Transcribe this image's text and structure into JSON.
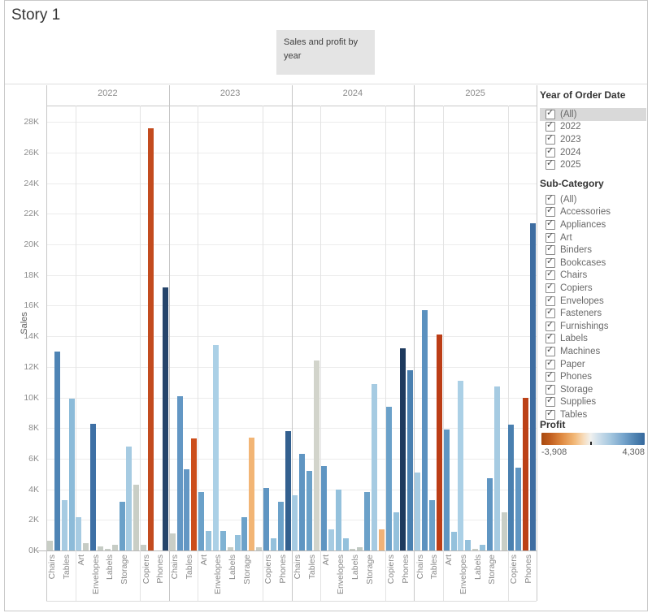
{
  "story": {
    "title": "Story 1",
    "caption": "Sales and profit by year"
  },
  "chart_data": {
    "type": "bar",
    "title": "Sales and profit by year",
    "ylabel": "Sales",
    "y_ticks": [
      "0K",
      "2K",
      "4K",
      "6K",
      "8K",
      "10K",
      "12K",
      "14K",
      "16K",
      "18K",
      "20K",
      "22K",
      "24K",
      "26K",
      "28K"
    ],
    "ylim": [
      0,
      29
    ],
    "unit": "thousands",
    "color_encoding": "Profit (orange = negative, blue = positive)",
    "group_sizes": [
      4,
      9,
      4
    ],
    "sub_slots": [
      {
        "sub": "Bookcases",
        "axis_label": false
      },
      {
        "sub": "Chairs",
        "axis_label": true
      },
      {
        "sub": "Furnishings",
        "axis_label": false
      },
      {
        "sub": "Tables",
        "axis_label": true
      },
      {
        "sub": "Appliances",
        "axis_label": false
      },
      {
        "sub": "Art",
        "axis_label": true
      },
      {
        "sub": "Binders",
        "axis_label": false
      },
      {
        "sub": "Envelopes",
        "axis_label": true
      },
      {
        "sub": "Fasteners",
        "axis_label": false
      },
      {
        "sub": "Labels",
        "axis_label": true
      },
      {
        "sub": "Paper",
        "axis_label": false
      },
      {
        "sub": "Storage",
        "axis_label": true
      },
      {
        "sub": "Supplies",
        "axis_label": false
      },
      {
        "sub": "Accessories",
        "axis_label": false
      },
      {
        "sub": "Copiers",
        "axis_label": true
      },
      {
        "sub": "Machines",
        "axis_label": false
      },
      {
        "sub": "Phones",
        "axis_label": true
      }
    ],
    "years": [
      {
        "label": "2022",
        "values": [
          0.65,
          13.0,
          3.3,
          9.9,
          2.2,
          0.5,
          8.3,
          0.25,
          0.1,
          0.35,
          3.2,
          6.8,
          4.3,
          0.4,
          27.6,
          0,
          17.2
        ],
        "colors": [
          "#c8cdc5",
          "#4e84b5",
          "#a6cbe2",
          "#8cbbd9",
          "#a6cbe2",
          "#c6ccc5",
          "#3e70a5",
          "#c6ccc5",
          "#c6ccc5",
          "#c6ccc5",
          "#6ba1c9",
          "#a6cbe2",
          "#c9cec6",
          "#c6ccc5",
          "#c34b1e",
          "#c6ccc5",
          "#26456b"
        ]
      },
      {
        "label": "2023",
        "values": [
          1.1,
          10.1,
          5.3,
          7.3,
          3.8,
          1.3,
          13.4,
          1.3,
          0.2,
          1.0,
          2.2,
          7.4,
          0.2,
          4.1,
          0.8,
          3.2,
          7.8
        ],
        "colors": [
          "#c9cec6",
          "#6397c4",
          "#6397c4",
          "#cc4e1b",
          "#6ba1c9",
          "#94c1dc",
          "#abd0e6",
          "#7fb2d3",
          "#c6ccc5",
          "#94c1dc",
          "#6ba1c9",
          "#f2b575",
          "#c6ccc5",
          "#5f95c2",
          "#94c1dc",
          "#6ba1c9",
          "#33608f"
        ]
      },
      {
        "label": "2024",
        "values": [
          3.6,
          6.3,
          5.2,
          12.4,
          5.5,
          1.4,
          4.0,
          0.8,
          0.1,
          0.2,
          3.8,
          10.9,
          1.4,
          9.4,
          2.5,
          13.2,
          11.8
        ],
        "colors": [
          "#a6cbe2",
          "#5f95c2",
          "#6ba1c9",
          "#d2d4cb",
          "#5f95c2",
          "#a6cbe2",
          "#94c1dc",
          "#94c1dc",
          "#c6ccc5",
          "#bfc9c2",
          "#6ba1c9",
          "#a6cbe2",
          "#f0b277",
          "#6ba1c9",
          "#94c1dc",
          "#1e3a5e",
          "#4a80b0"
        ]
      },
      {
        "label": "2025",
        "values": [
          5.1,
          15.7,
          3.3,
          14.1,
          7.9,
          1.2,
          11.1,
          0.7,
          0.1,
          0.4,
          4.7,
          10.7,
          2.5,
          8.2,
          5.4,
          10.0,
          21.4
        ],
        "colors": [
          "#a6cbe2",
          "#5b91bf",
          "#6ba1c9",
          "#bc3d16",
          "#5f95c2",
          "#94c1dc",
          "#abd0e6",
          "#94c1dc",
          "#c6ccc5",
          "#94c1dc",
          "#5f95c2",
          "#a6cbe2",
          "#c9cec6",
          "#4a80b0",
          "#5f95c2",
          "#bc4117",
          "#3e6da1"
        ]
      }
    ]
  },
  "filters": [
    {
      "title": "Year of Order Date",
      "items": [
        {
          "label": "(All)",
          "checked": true,
          "highlight": true
        },
        {
          "label": "2022",
          "checked": true,
          "highlight": false
        },
        {
          "label": "2023",
          "checked": true,
          "highlight": false
        },
        {
          "label": "2024",
          "checked": true,
          "highlight": false
        },
        {
          "label": "2025",
          "checked": true,
          "highlight": false
        }
      ]
    },
    {
      "title": "Sub-Category",
      "items": [
        {
          "label": "(All)",
          "checked": true,
          "highlight": false
        },
        {
          "label": "Accessories",
          "checked": true,
          "highlight": false
        },
        {
          "label": "Appliances",
          "checked": true,
          "highlight": false
        },
        {
          "label": "Art",
          "checked": true,
          "highlight": false
        },
        {
          "label": "Binders",
          "checked": true,
          "highlight": false
        },
        {
          "label": "Bookcases",
          "checked": true,
          "highlight": false
        },
        {
          "label": "Chairs",
          "checked": true,
          "highlight": false
        },
        {
          "label": "Copiers",
          "checked": true,
          "highlight": false
        },
        {
          "label": "Envelopes",
          "checked": true,
          "highlight": false
        },
        {
          "label": "Fasteners",
          "checked": true,
          "highlight": false
        },
        {
          "label": "Furnishings",
          "checked": true,
          "highlight": false
        },
        {
          "label": "Labels",
          "checked": true,
          "highlight": false
        },
        {
          "label": "Machines",
          "checked": true,
          "highlight": false
        },
        {
          "label": "Paper",
          "checked": true,
          "highlight": false
        },
        {
          "label": "Phones",
          "checked": true,
          "highlight": false
        },
        {
          "label": "Storage",
          "checked": true,
          "highlight": false
        },
        {
          "label": "Supplies",
          "checked": true,
          "highlight": false
        },
        {
          "label": "Tables",
          "checked": true,
          "highlight": false
        }
      ]
    }
  ],
  "legend": {
    "title": "Profit",
    "min_label": "-3,908",
    "max_label": "4,308",
    "negative_color": "#a84a10",
    "positive_color": "#36699d"
  }
}
